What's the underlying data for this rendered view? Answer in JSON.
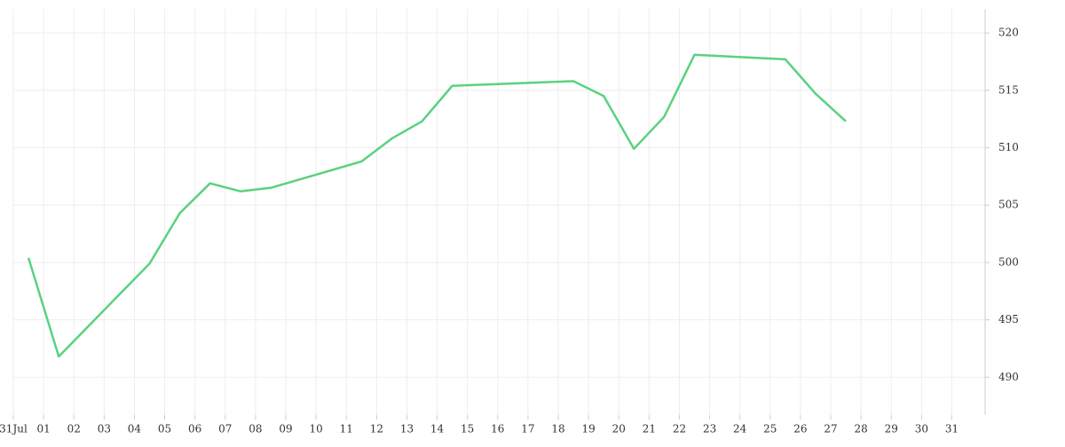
{
  "chart_data": {
    "type": "line",
    "x": [
      0.5,
      1.5,
      4.5,
      5.5,
      6.5,
      7.5,
      8.5,
      11.5,
      12.5,
      13.5,
      14.5,
      18.5,
      19.5,
      20.5,
      21.5,
      22.5,
      25.5,
      26.5,
      27.5
    ],
    "series": [
      {
        "color": "#5ad27f",
        "values": [
          500.4,
          491.8,
          499.9,
          504.3,
          506.9,
          506.2,
          506.5,
          508.8,
          510.8,
          512.3,
          515.4,
          515.8,
          514.5,
          509.9,
          512.7,
          518.1,
          517.7,
          514.7,
          512.3
        ]
      }
    ],
    "xlim": [
      0,
      32.1
    ],
    "xticks": [
      {
        "value": 0,
        "label": "31Jul"
      },
      {
        "value": 1,
        "label": "01"
      },
      {
        "value": 2,
        "label": "02"
      },
      {
        "value": 3,
        "label": "03"
      },
      {
        "value": 4,
        "label": "04"
      },
      {
        "value": 5,
        "label": "05"
      },
      {
        "value": 6,
        "label": "06"
      },
      {
        "value": 7,
        "label": "07"
      },
      {
        "value": 8,
        "label": "08"
      },
      {
        "value": 9,
        "label": "09"
      },
      10,
      11,
      12,
      13,
      14,
      15,
      16,
      17,
      18,
      19,
      20,
      21,
      22,
      23,
      24,
      25,
      26,
      27,
      28,
      29,
      30,
      31
    ],
    "ylim": [
      486.7,
      522.1
    ],
    "yticks": [
      490,
      495,
      500,
      505,
      510,
      515,
      520
    ],
    "grid": true
  }
}
